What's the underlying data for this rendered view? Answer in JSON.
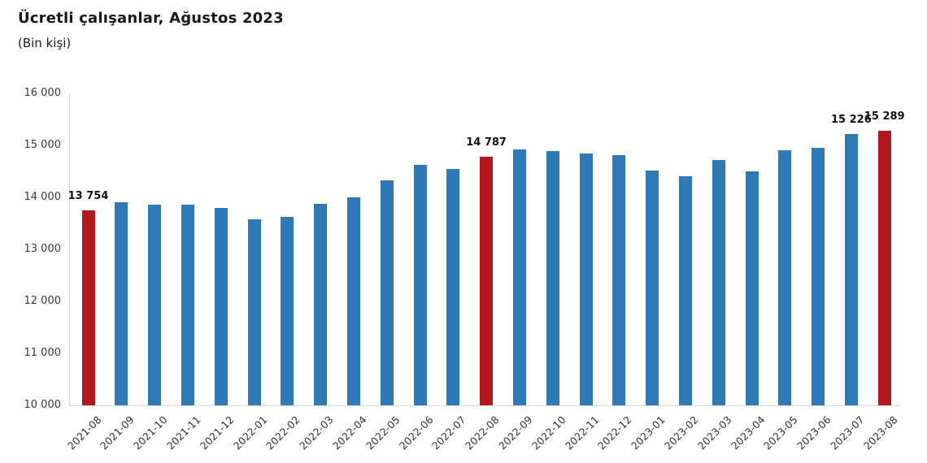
{
  "title": "Ücretli çalışanlar, Ağustos 2023",
  "subtitle": "(Bin kişi)",
  "colors": {
    "bar": "#2E79B8",
    "highlight": "#B2181E",
    "axis_line": "#D9D9D9",
    "title_text": "#1A1A1A",
    "tick_text": "#3B3B3B",
    "data_label_text": "#111111"
  },
  "chart_data": {
    "type": "bar",
    "title": "Ücretli çalışanlar, Ağustos 2023",
    "subtitle": "(Bin kişi)",
    "xlabel": "",
    "ylabel": "",
    "ylim": [
      10000,
      16000
    ],
    "ytick_step": 1000,
    "ytick_labels": [
      "10 000",
      "11 000",
      "12 000",
      "13 000",
      "14 000",
      "15 000",
      "16 000"
    ],
    "grid": false,
    "legend": false,
    "categories": [
      "2021-08",
      "2021-09",
      "2021-10",
      "2021-11",
      "2021-12",
      "2022-01",
      "2022-02",
      "2022-03",
      "2022-04",
      "2022-05",
      "2022-06",
      "2022-07",
      "2022-08",
      "2022-09",
      "2022-10",
      "2022-11",
      "2022-12",
      "2023-01",
      "2023-02",
      "2023-03",
      "2023-04",
      "2023-05",
      "2023-06",
      "2023-07",
      "2023-08"
    ],
    "values": [
      13754,
      13900,
      13865,
      13855,
      13805,
      13575,
      13620,
      13880,
      14000,
      14330,
      14630,
      14550,
      14787,
      14930,
      14890,
      14845,
      14810,
      14510,
      14400,
      14720,
      14500,
      14910,
      14960,
      15226,
      15289
    ],
    "highlighted_categories": [
      "2021-08",
      "2022-08",
      "2023-08"
    ],
    "data_labels": [
      {
        "category": "2021-08",
        "text": "13 754"
      },
      {
        "category": "2022-08",
        "text": "14 787"
      },
      {
        "category": "2023-07",
        "text": "15 226"
      },
      {
        "category": "2023-08",
        "text": "15 289"
      }
    ]
  }
}
